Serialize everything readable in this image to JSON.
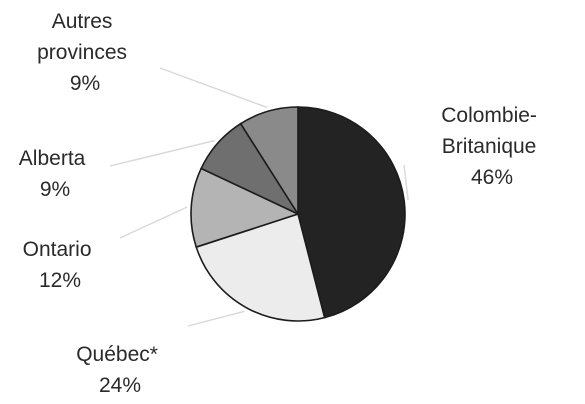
{
  "chart_data": {
    "type": "pie",
    "title": "",
    "slices": [
      {
        "label": [
          "Colombie-",
          "Britanique"
        ],
        "value": 46,
        "value_label": "46%",
        "color": "#232323"
      },
      {
        "label": [
          "Québec*"
        ],
        "value": 24,
        "value_label": "24%",
        "color": "#ececec"
      },
      {
        "label": [
          "Ontario"
        ],
        "value": 12,
        "value_label": "12%",
        "color": "#b4b4b4"
      },
      {
        "label": [
          "Alberta"
        ],
        "value": 9,
        "value_label": "9%",
        "color": "#6f6f6f"
      },
      {
        "label": [
          "Autres",
          "provinces"
        ],
        "value": 9,
        "value_label": "9%",
        "color": "#8a8a8a"
      }
    ],
    "start": "12 o'clock",
    "direction": "clockwise",
    "legend": "none"
  }
}
